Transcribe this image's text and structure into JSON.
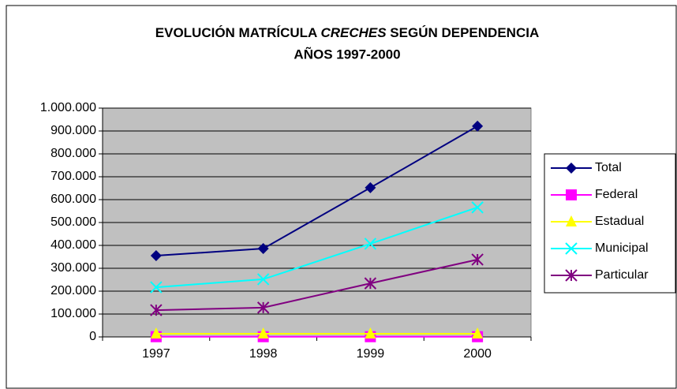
{
  "chart_data": {
    "type": "line",
    "title": [
      "EVOLUCIÓN MATRÍCULA",
      "CRECHES",
      "SEGÚN DEPENDENCIA"
    ],
    "subtitle": "AÑOS 1997-2000",
    "categories": [
      "1997",
      "1998",
      "1999",
      "2000"
    ],
    "series": [
      {
        "name": "Total",
        "color": "#000080",
        "marker": "diamond",
        "values": [
          355000,
          386000,
          652000,
          921000
        ]
      },
      {
        "name": "Federal",
        "color": "#ff00ff",
        "marker": "square",
        "values": [
          1000,
          1000,
          1000,
          1000
        ]
      },
      {
        "name": "Estadual",
        "color": "#ffff00",
        "marker": "triangle",
        "values": [
          14000,
          14000,
          14000,
          14000
        ]
      },
      {
        "name": "Municipal",
        "color": "#00ffff",
        "marker": "x",
        "values": [
          217000,
          252000,
          407000,
          566000
        ]
      },
      {
        "name": "Particular",
        "color": "#800080",
        "marker": "star",
        "values": [
          117000,
          128000,
          234000,
          338000
        ]
      }
    ],
    "ylim": [
      0,
      1000000
    ],
    "yticks": [
      0,
      {
        "value": 100000,
        "label": "100.000"
      },
      {
        "value": 200000,
        "label": "200.000"
      },
      {
        "value": 300000,
        "label": "300.000"
      },
      {
        "value": 400000,
        "label": "400.000"
      },
      {
        "value": 500000,
        "label": "500.000"
      },
      {
        "value": 600000,
        "label": "600.000"
      },
      {
        "value": 700000,
        "label": "700.000"
      },
      {
        "value": 800000,
        "label": "800.000"
      },
      {
        "value": 900000,
        "label": "900.000"
      },
      {
        "value": 1000000,
        "label": "1.000.000"
      }
    ],
    "grid": true,
    "legend": "right"
  }
}
